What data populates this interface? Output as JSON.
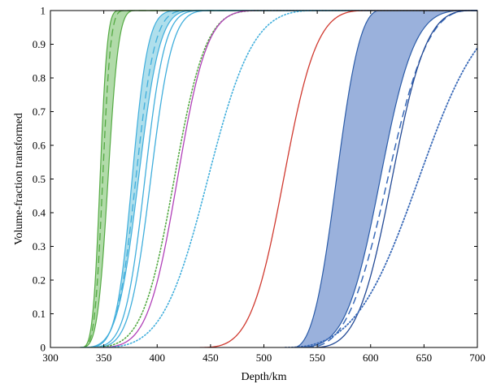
{
  "chart_data": {
    "type": "line",
    "title": "",
    "xlabel": "Depth/km",
    "ylabel": "Volume-fraction transformed",
    "xlim": [
      300,
      700
    ],
    "ylim": [
      0,
      1
    ],
    "xticks": [
      300,
      350,
      400,
      450,
      500,
      550,
      600,
      650,
      700
    ],
    "yticks": [
      0,
      0.1,
      0.2,
      0.3,
      0.4,
      0.5,
      0.6,
      0.7,
      0.8,
      0.9,
      1
    ],
    "grid": false,
    "legend": "none",
    "colors": {
      "green": "#55aa44",
      "green_fill": "#a9d7a0",
      "cyan": "#40aedc",
      "cyan_fill": "#a6dcea",
      "purple": "#b040b8",
      "red": "#d03a30",
      "blue": "#2c5ca8",
      "blue_fill": "#8fa8d8",
      "blue_line": "#3a6ab8",
      "dark_blue": "#234a96",
      "axis": "#000000"
    },
    "bands": [
      {
        "name": "green band",
        "color": "green",
        "fill": "green_fill",
        "start": 328,
        "left_end": 365,
        "left_exp": 2.8,
        "right_end": 380,
        "right_exp": 2.7
      },
      {
        "name": "cyan band",
        "color": "cyan",
        "fill": "cyan_fill",
        "start": 328,
        "left_end": 425,
        "left_exp": 3.3,
        "right_end": 437,
        "right_exp": 2.8
      },
      {
        "name": "blue band",
        "color": "blue",
        "fill": "blue_fill",
        "start": 528,
        "left_end": 608,
        "left_exp": 1.9,
        "right_end": 690,
        "right_exp": 2.6
      }
    ],
    "series": [
      {
        "name": "green dashed",
        "color": "green",
        "style": "dashed",
        "width": 1.3,
        "start": 328,
        "end": 370,
        "exp": 2.9
      },
      {
        "name": "cyan dashed",
        "color": "cyan",
        "style": "dashed",
        "width": 1.3,
        "start": 328,
        "end": 432,
        "exp": 3.0
      },
      {
        "name": "cyan solid 1",
        "color": "cyan",
        "style": "solid",
        "width": 1.3,
        "start": 330,
        "end": 447,
        "exp": 3.2
      },
      {
        "name": "cyan solid 2",
        "color": "cyan",
        "style": "solid",
        "width": 1.3,
        "start": 335,
        "end": 453,
        "exp": 3.0
      },
      {
        "name": "green dotted",
        "color": "green",
        "style": "dotted",
        "width": 1.6,
        "start": 332,
        "end": 500,
        "exp": 2.9
      },
      {
        "name": "purple solid",
        "color": "purple",
        "style": "solid",
        "width": 1.3,
        "start": 340,
        "end": 498,
        "exp": 2.9
      },
      {
        "name": "cyan dotted",
        "color": "cyan",
        "style": "dotted",
        "width": 1.6,
        "start": 345,
        "end": 550,
        "exp": 2.5
      },
      {
        "name": "red solid",
        "color": "red",
        "style": "solid",
        "width": 1.3,
        "start": 440,
        "end": 597,
        "exp": 2.6
      },
      {
        "name": "blue dashed",
        "color": "blue_line",
        "style": "dashed",
        "width": 1.5,
        "start": 540,
        "end": 692,
        "exp": 2.1
      },
      {
        "name": "blue solid",
        "color": "dark_blue",
        "style": "solid",
        "width": 1.3,
        "start": 545,
        "end": 695,
        "exp": 2.4
      },
      {
        "name": "blue dotted",
        "color": "blue_line",
        "style": "dotted",
        "width": 1.8,
        "start": 520,
        "end": 770,
        "exp": 2.2
      }
    ]
  }
}
